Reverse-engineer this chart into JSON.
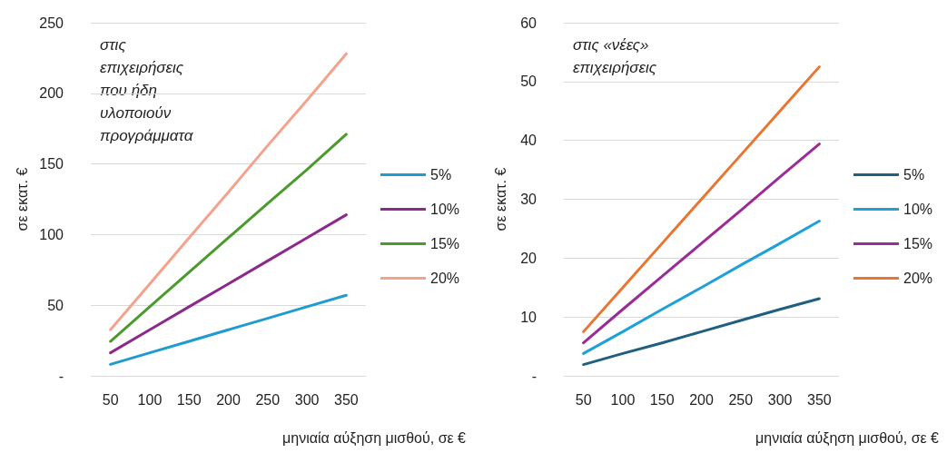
{
  "chart_data": [
    {
      "type": "line",
      "annotations": [
        "στις επιχειρήσεις που ήδη υλοποιούν προγράμματα"
      ],
      "xlabel": "μηνιαία αύξηση μισθού, σε €",
      "ylabel": "σε εκατ. €",
      "categories": [
        "50",
        "100",
        "150",
        "200",
        "250",
        "300",
        "350"
      ],
      "series": [
        {
          "name": "5%",
          "color": "#1f9bd1",
          "values": [
            8.1,
            16.3,
            24.4,
            32.6,
            40.7,
            48.9,
            57
          ]
        },
        {
          "name": "10%",
          "color": "#8b2a8b",
          "values": [
            16.3,
            32.6,
            48.9,
            65.1,
            81.4,
            97.7,
            114
          ]
        },
        {
          "name": "15%",
          "color": "#4a9a2e",
          "values": [
            24.4,
            48.9,
            73.3,
            97.7,
            122,
            146,
            171
          ]
        },
        {
          "name": "20%",
          "color": "#f4a28c",
          "values": [
            32.6,
            65.1,
            97.7,
            130,
            163,
            195,
            228
          ]
        }
      ],
      "ylim": [
        0,
        250
      ],
      "yticks": [
        {
          "value": 0,
          "label": "-"
        },
        50,
        100,
        150,
        200,
        250
      ],
      "grid": "y",
      "legend": "right",
      "marker": "none",
      "line_style": "solid"
    },
    {
      "type": "line",
      "annotations": [
        "στις «νέες» επιχειρήσεις"
      ],
      "xlabel": "μηνιαία αύξηση μισθού, σε €",
      "ylabel": "σε εκατ. €",
      "categories": [
        "50",
        "100",
        "150",
        "200",
        "250",
        "300",
        "350"
      ],
      "series": [
        {
          "name": "5%",
          "color": "#1f5f80",
          "values": [
            1.9,
            3.8,
            5.6,
            7.5,
            9.4,
            11.3,
            13.1
          ]
        },
        {
          "name": "10%",
          "color": "#1ea0d8",
          "values": [
            3.8,
            7.5,
            11.3,
            15,
            18.8,
            22.5,
            26.3
          ]
        },
        {
          "name": "15%",
          "color": "#9b2b96",
          "values": [
            5.6,
            11.3,
            16.9,
            22.5,
            28.1,
            33.8,
            39.4
          ]
        },
        {
          "name": "20%",
          "color": "#ec7431",
          "values": [
            7.5,
            15,
            22.5,
            30,
            37.5,
            45,
            52.5
          ]
        }
      ],
      "ylim": [
        0,
        60
      ],
      "yticks": [
        {
          "value": 0,
          "label": "-"
        },
        10,
        20,
        30,
        40,
        50,
        60
      ],
      "grid": "y",
      "legend": "right",
      "marker": "none",
      "line_style": "solid"
    }
  ]
}
